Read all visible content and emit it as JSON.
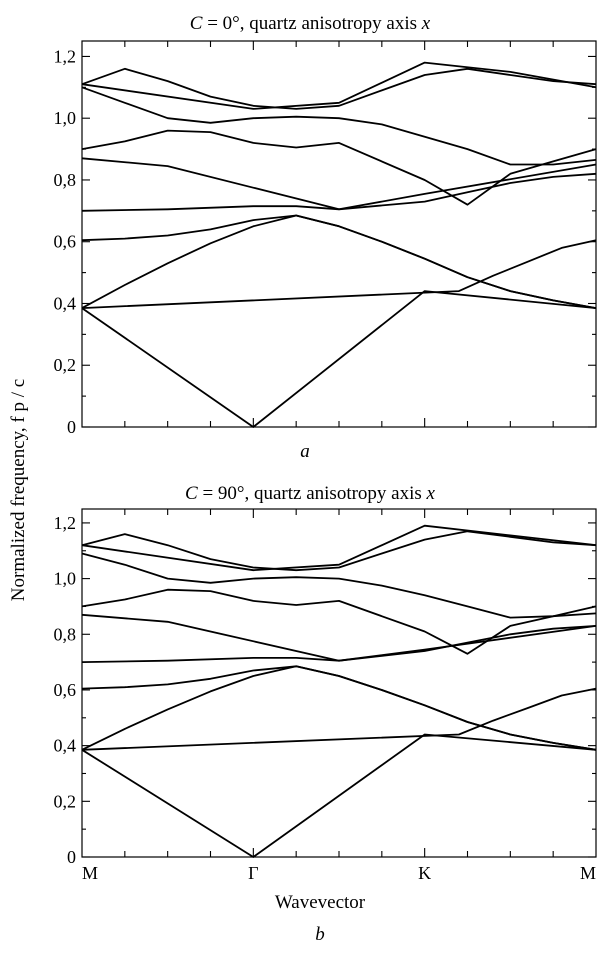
{
  "figure": {
    "ylabel": "Normalized frequency, f p / c",
    "xlabel": "Wavevector",
    "xticks": [
      "M",
      "Γ",
      "K",
      "M"
    ]
  },
  "chart_data": [
    {
      "type": "line",
      "panel_label": "a",
      "title": "C = 0°, quartz anisotropy axis x",
      "title_parts": {
        "pre": "C",
        "mid": " = 0°, quartz anisotropy axis ",
        "post": "x"
      },
      "ylim": [
        0,
        1.25
      ],
      "yticks": [
        "0",
        "0,2",
        "0,4",
        "0,6",
        "0,8",
        "1,0",
        "1,2"
      ],
      "yticks_values": [
        0,
        0.2,
        0.4,
        0.6,
        0.8,
        1.0,
        1.2
      ],
      "xlim": [
        0,
        3
      ],
      "x_tick_positions": [
        0,
        1,
        1.5,
        2,
        3
      ],
      "grid": false,
      "series": [
        {
          "x": [
            0,
            1,
            2,
            3
          ],
          "y": [
            0.385,
            0,
            0.44,
            0.385
          ]
        },
        {
          "x": [
            0,
            0.25,
            0.5,
            0.75,
            1,
            1.25,
            1.5,
            1.75,
            2,
            2.25,
            2.5,
            2.75,
            3
          ],
          "y": [
            0.385,
            0.46,
            0.53,
            0.595,
            0.65,
            0.685,
            0.65,
            0.6,
            0.545,
            0.485,
            0.44,
            0.41,
            0.385
          ]
        },
        {
          "x": [
            0,
            0.25,
            0.5,
            0.75,
            1,
            1.25,
            1.5,
            1.75,
            2,
            2.25,
            2.5,
            2.75,
            3
          ],
          "y": [
            0.605,
            0.61,
            0.62,
            0.64,
            0.67,
            0.685,
            0.65,
            0.6,
            0.545,
            0.485,
            0.44,
            0.41,
            0.385
          ]
        },
        {
          "x": [
            0,
            2.2,
            2.4,
            2.6,
            2.8,
            3
          ],
          "y": [
            0.385,
            0.44,
            0.49,
            0.535,
            0.58,
            0.605
          ]
        },
        {
          "x": [
            0,
            0.5,
            1,
            1.25,
            1.5,
            2,
            2.25,
            2.5,
            2.75,
            3
          ],
          "y": [
            0.7,
            0.705,
            0.715,
            0.715,
            0.705,
            0.73,
            0.76,
            0.79,
            0.81,
            0.82
          ]
        },
        {
          "x": [
            0,
            0.5,
            1.5,
            2,
            3
          ],
          "y": [
            0.87,
            0.845,
            0.705,
            0.755,
            0.85
          ]
        },
        {
          "x": [
            0,
            0.25,
            0.5,
            0.75,
            1,
            1.25,
            1.5,
            2,
            2.25,
            2.5,
            2.75,
            3
          ],
          "y": [
            0.9,
            0.925,
            0.96,
            0.955,
            0.92,
            0.905,
            0.92,
            0.8,
            0.72,
            0.82,
            0.86,
            0.9
          ]
        },
        {
          "x": [
            0,
            0.25,
            0.5,
            0.75,
            1,
            1.25,
            1.5,
            1.75,
            2,
            2.25,
            2.5,
            2.75,
            3
          ],
          "y": [
            1.1,
            1.05,
            1.0,
            0.985,
            1.0,
            1.005,
            1.0,
            0.98,
            0.94,
            0.9,
            0.85,
            0.85,
            0.865
          ]
        },
        {
          "x": [
            0,
            0.25,
            0.5,
            0.75,
            1,
            1.25,
            1.5,
            1.75,
            2,
            2.25,
            2.5,
            2.75,
            3
          ],
          "y": [
            1.11,
            1.16,
            1.12,
            1.07,
            1.04,
            1.03,
            1.04,
            1.09,
            1.14,
            1.16,
            1.14,
            1.12,
            1.11
          ]
        },
        {
          "x": [
            0,
            1,
            1.5,
            2,
            2.5,
            3
          ],
          "y": [
            1.11,
            1.03,
            1.05,
            1.18,
            1.15,
            1.1
          ]
        }
      ]
    },
    {
      "type": "line",
      "panel_label": "b",
      "title": "C = 90°, quartz anisotropy axis x",
      "title_parts": {
        "pre": "C",
        "mid": " = 90°, quartz anisotropy axis ",
        "post": "x"
      },
      "ylim": [
        0,
        1.25
      ],
      "yticks": [
        "0",
        "0,2",
        "0,4",
        "0,6",
        "0,8",
        "1,0",
        "1,2"
      ],
      "yticks_values": [
        0,
        0.2,
        0.4,
        0.6,
        0.8,
        1.0,
        1.2
      ],
      "xlim": [
        0,
        3
      ],
      "x_tick_positions": [
        0,
        1,
        1.5,
        2,
        3
      ],
      "grid": false,
      "series": [
        {
          "x": [
            0,
            1,
            2,
            3
          ],
          "y": [
            0.385,
            0,
            0.44,
            0.385
          ]
        },
        {
          "x": [
            0,
            0.25,
            0.5,
            0.75,
            1,
            1.25,
            1.5,
            1.75,
            2,
            2.25,
            2.5,
            2.75,
            3
          ],
          "y": [
            0.385,
            0.46,
            0.53,
            0.595,
            0.65,
            0.685,
            0.65,
            0.6,
            0.545,
            0.485,
            0.44,
            0.41,
            0.385
          ]
        },
        {
          "x": [
            0,
            0.25,
            0.5,
            0.75,
            1,
            1.25,
            1.5,
            1.75,
            2,
            2.25,
            2.5,
            2.75,
            3
          ],
          "y": [
            0.605,
            0.61,
            0.62,
            0.64,
            0.67,
            0.685,
            0.65,
            0.6,
            0.545,
            0.485,
            0.44,
            0.41,
            0.385
          ]
        },
        {
          "x": [
            0,
            2.2,
            2.4,
            2.6,
            2.8,
            3
          ],
          "y": [
            0.385,
            0.44,
            0.49,
            0.535,
            0.58,
            0.605
          ]
        },
        {
          "x": [
            0,
            0.5,
            1,
            1.25,
            1.5,
            2,
            2.25,
            2.5,
            2.75,
            3
          ],
          "y": [
            0.7,
            0.705,
            0.715,
            0.715,
            0.705,
            0.74,
            0.77,
            0.8,
            0.82,
            0.83
          ]
        },
        {
          "x": [
            0,
            0.5,
            1.5,
            2,
            3
          ],
          "y": [
            0.87,
            0.845,
            0.705,
            0.745,
            0.83
          ]
        },
        {
          "x": [
            0,
            0.25,
            0.5,
            0.75,
            1,
            1.25,
            1.5,
            2,
            2.25,
            2.5,
            2.75,
            3
          ],
          "y": [
            0.9,
            0.925,
            0.96,
            0.955,
            0.92,
            0.905,
            0.92,
            0.81,
            0.73,
            0.83,
            0.865,
            0.9
          ]
        },
        {
          "x": [
            0,
            0.25,
            0.5,
            0.75,
            1,
            1.25,
            1.5,
            1.75,
            2,
            2.25,
            2.5,
            2.75,
            3
          ],
          "y": [
            1.09,
            1.05,
            1.0,
            0.985,
            1.0,
            1.005,
            1.0,
            0.975,
            0.94,
            0.9,
            0.86,
            0.865,
            0.875
          ]
        },
        {
          "x": [
            0,
            0.25,
            0.5,
            0.75,
            1,
            1.25,
            1.5,
            1.75,
            2,
            2.25,
            2.5,
            2.75,
            3
          ],
          "y": [
            1.12,
            1.16,
            1.12,
            1.07,
            1.04,
            1.03,
            1.04,
            1.09,
            1.14,
            1.17,
            1.15,
            1.13,
            1.12
          ]
        },
        {
          "x": [
            0,
            1,
            1.5,
            2,
            2.5,
            3
          ],
          "y": [
            1.12,
            1.03,
            1.05,
            1.19,
            1.155,
            1.12
          ]
        }
      ]
    }
  ]
}
